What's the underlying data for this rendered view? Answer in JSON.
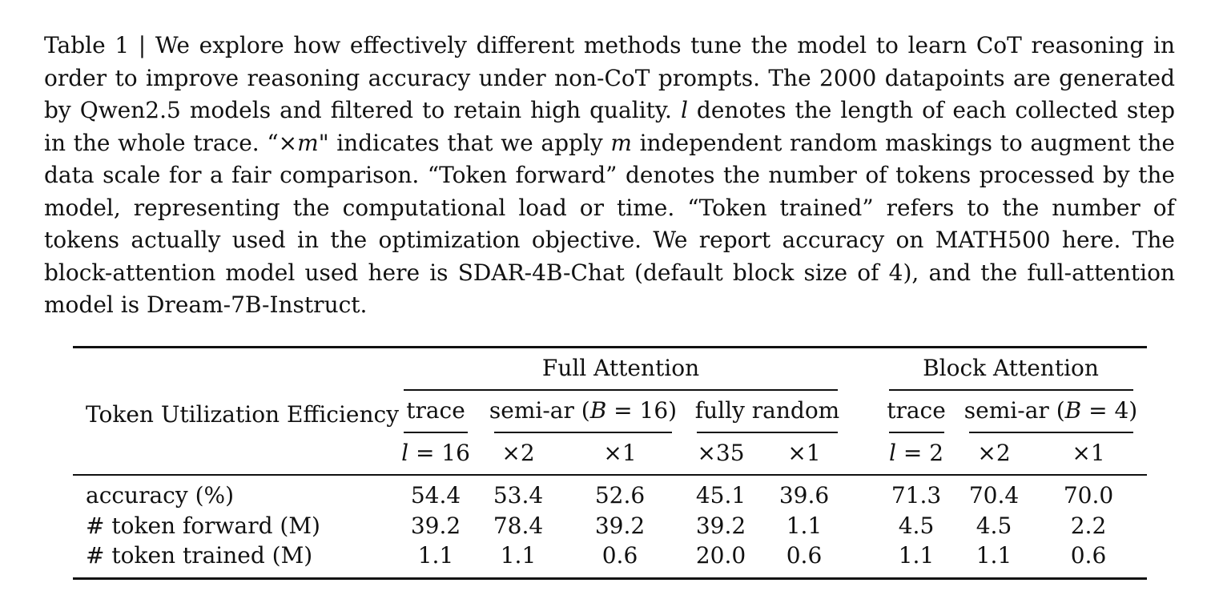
{
  "caption": {
    "prefix": "Table 1 | We explore how effectively different methods tune the model to learn CoT reasoning in order to improve reasoning accuracy under non-CoT prompts. The 2000 datapoints are generated by Qwen2.5 models and filtered to retain high quality. ",
    "var_l": "l",
    "part2": " denotes the length of each collected step in the whole trace. “×",
    "var_m1": "m",
    "part3": "\" indicates that we apply ",
    "var_m2": "m",
    "suffix": " independent random maskings to augment the data scale for a fair comparison. “Token forward” denotes the number of tokens processed by the model, representing the computational load or time. “Token trained” refers to the number of tokens actually used in the optimization objective. We report accuracy on MATH500 here. The block-attention model used here is SDAR-4B-Chat (default block size of 4), and the full-attention model is Dream-7B-Instruct."
  },
  "table": {
    "row_header_title": "Token Utilization Efficiency",
    "groups": {
      "full": "Full Attention",
      "block": "Block Attention"
    },
    "subgroups": {
      "full_trace": "trace",
      "full_semiar_prefix": "semi-ar (",
      "full_semiar_var": "B",
      "full_semiar_suffix": " = 16)",
      "full_random": "fully random",
      "block_trace": "trace",
      "block_semiar_prefix": "semi-ar (",
      "block_semiar_var": "B",
      "block_semiar_suffix": " = 4)"
    },
    "settings": {
      "c1_var": "l",
      "c1_rest": " = 16",
      "c2": "×2",
      "c3": "×1",
      "c4": "×35",
      "c5": "×1",
      "c6_var": "l",
      "c6_rest": " = 2",
      "c7": "×2",
      "c8": "×1"
    },
    "rows": [
      {
        "label": "accuracy (%)",
        "values": [
          "54.4",
          "53.4",
          "52.6",
          "45.1",
          "39.6",
          "71.3",
          "70.4",
          "70.0"
        ]
      },
      {
        "label": "# token forward (M)",
        "values": [
          "39.2",
          "78.4",
          "39.2",
          "39.2",
          "1.1",
          "4.5",
          "4.5",
          "2.2"
        ]
      },
      {
        "label": "# token trained (M)",
        "values": [
          "1.1",
          "1.1",
          "0.6",
          "20.0",
          "0.6",
          "1.1",
          "1.1",
          "0.6"
        ]
      }
    ]
  }
}
